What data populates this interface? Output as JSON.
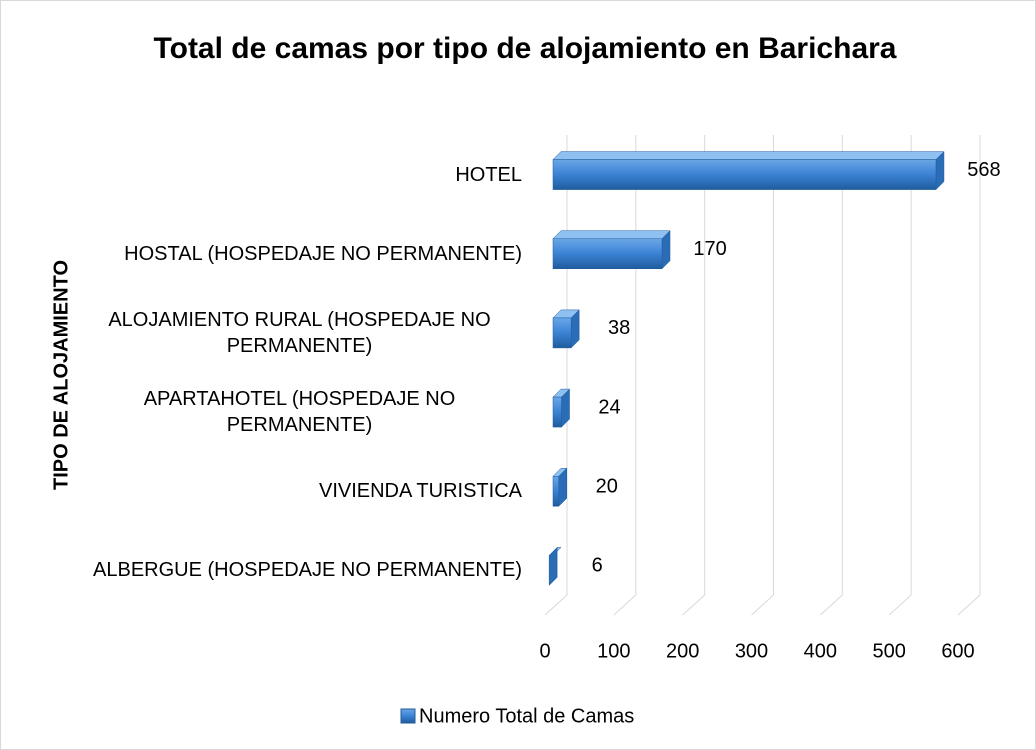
{
  "chart_data": {
    "type": "bar",
    "orientation": "horizontal",
    "title": "Total de camas por tipo de alojamiento en Barichara",
    "y_label": "TIPO DE ALOJAMIENTO",
    "categories": [
      "HOTEL",
      "HOSTAL (HOSPEDAJE NO PERMANENTE)",
      "ALOJAMIENTO RURAL (HOSPEDAJE NO PERMANENTE)",
      "APARTAHOTEL (HOSPEDAJE NO PERMANENTE)",
      "VIVIENDA TURISTICA",
      "ALBERGUE (HOSPEDAJE NO PERMANENTE)"
    ],
    "series": [
      {
        "name": "Numero Total de Camas",
        "color": "#3b82d4",
        "values": [
          568,
          170,
          38,
          24,
          20,
          6
        ]
      }
    ],
    "xlim": [
      0,
      600
    ],
    "xticks": [
      0,
      100,
      200,
      300,
      400,
      500,
      600
    ],
    "grid": true,
    "legend": "bottom"
  }
}
